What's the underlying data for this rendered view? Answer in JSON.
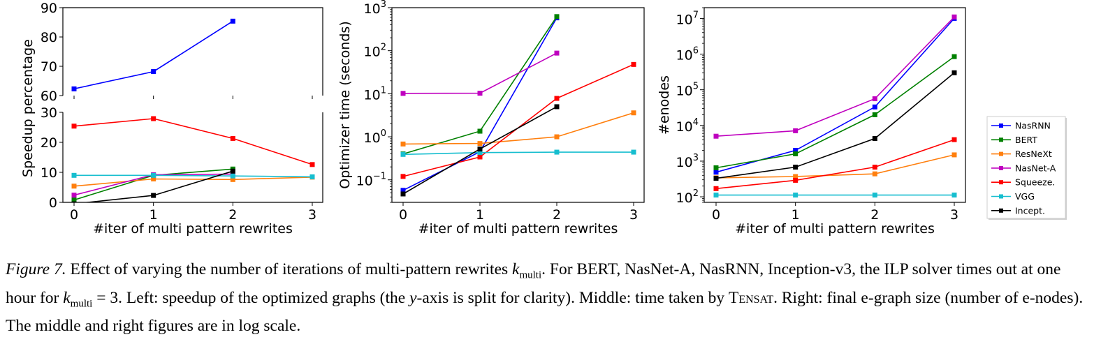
{
  "figure": {
    "caption": {
      "label": "Figure 7.",
      "segments": [
        {
          "t": " Effect of varying the number of iterations of multi-pattern rewrites "
        },
        {
          "t": "k",
          "s": "var"
        },
        {
          "t": "multi",
          "s": "sub"
        },
        {
          "t": ". For BERT, NasNet-A, NasRNN, Inception-v3, the ILP solver times out at one hour for "
        },
        {
          "t": "k",
          "s": "var"
        },
        {
          "t": "multi",
          "s": "sub"
        },
        {
          "t": " = 3. Left: speedup of the optimized graphs (the "
        },
        {
          "t": "y",
          "s": "var"
        },
        {
          "t": "-axis is split for clarity). Middle: time taken by "
        },
        {
          "t": "TENSAT",
          "s": "smcaps"
        },
        {
          "t": ". Right: final e-graph size (number of e-nodes). The middle and right figures are in log scale."
        }
      ]
    }
  },
  "colors": {
    "NasRNN": "#0000ff",
    "BERT": "#008000",
    "ResNeXt": "#ff7f0e",
    "NasNet-A": "#bf00bf",
    "Squeeze.": "#ff0000",
    "VGG": "#17becf",
    "Incept.": "#000000"
  },
  "legend": {
    "placement": "right",
    "entries": [
      "NasRNN",
      "BERT",
      "ResNeXt",
      "NasNet-A",
      "Squeeze.",
      "VGG",
      "Incept."
    ]
  },
  "chart_data": [
    {
      "id": "speedup",
      "type": "line",
      "split_y_axis": true,
      "xlabel": "#iter of multi pattern rewrites",
      "ylabel": "Speedup percentage",
      "x_ticks": [
        "0",
        "1",
        "2",
        "3"
      ],
      "top_panel": {
        "ylim": [
          60,
          90
        ],
        "y_ticks": [
          "60",
          "70",
          "80",
          "90"
        ]
      },
      "bottom_panel": {
        "ylim": [
          0,
          30
        ],
        "y_ticks": [
          "0",
          "10",
          "20",
          "30"
        ]
      },
      "series": [
        {
          "name": "NasRNN",
          "x": [
            0,
            1,
            2
          ],
          "y": [
            62.3,
            68.2,
            85.4
          ]
        },
        {
          "name": "BERT",
          "x": [
            0,
            1,
            2
          ],
          "y": [
            0.8,
            9.0,
            11.1
          ]
        },
        {
          "name": "ResNeXt",
          "x": [
            0,
            1,
            2,
            3
          ],
          "y": [
            5.4,
            7.8,
            7.6,
            8.4
          ]
        },
        {
          "name": "NasNet-A",
          "x": [
            0,
            1,
            2
          ],
          "y": [
            2.4,
            9.2,
            9.4
          ]
        },
        {
          "name": "Squeeze.",
          "x": [
            0,
            1,
            2,
            3
          ],
          "y": [
            25.4,
            27.9,
            21.3,
            12.6
          ]
        },
        {
          "name": "VGG",
          "x": [
            0,
            1,
            2,
            3
          ],
          "y": [
            9.0,
            9.0,
            8.8,
            8.5
          ]
        },
        {
          "name": "Incept.",
          "x": [
            0,
            1,
            2
          ],
          "y": [
            -0.5,
            2.3,
            10.4
          ]
        }
      ]
    },
    {
      "id": "time",
      "type": "line",
      "y_scale": "log",
      "xlabel": "#iter of multi pattern rewrites",
      "ylabel": "Optimizer time (seconds)",
      "x_ticks": [
        "0",
        "1",
        "2",
        "3"
      ],
      "ylim": [
        0.03,
        1000
      ],
      "y_ticks": [
        {
          "base": "10",
          "exp": "−1",
          "value": 0.1
        },
        {
          "base": "10",
          "exp": "0",
          "value": 1
        },
        {
          "base": "10",
          "exp": "1",
          "value": 10
        },
        {
          "base": "10",
          "exp": "2",
          "value": 100
        },
        {
          "base": "10",
          "exp": "3",
          "value": 1000
        }
      ],
      "series": [
        {
          "name": "NasRNN",
          "x": [
            0,
            1,
            2
          ],
          "y": [
            0.057,
            0.45,
            580
          ]
        },
        {
          "name": "BERT",
          "x": [
            0,
            1,
            2
          ],
          "y": [
            0.4,
            1.35,
            620
          ]
        },
        {
          "name": "ResNeXt",
          "x": [
            0,
            1,
            2,
            3
          ],
          "y": [
            0.68,
            0.7,
            1.0,
            3.6
          ]
        },
        {
          "name": "NasNet-A",
          "x": [
            0,
            1,
            2
          ],
          "y": [
            10.2,
            10.3,
            88
          ]
        },
        {
          "name": "Squeeze.",
          "x": [
            0,
            1,
            2,
            3
          ],
          "y": [
            0.12,
            0.34,
            7.8,
            48
          ]
        },
        {
          "name": "VGG",
          "x": [
            0,
            1,
            2,
            3
          ],
          "y": [
            0.39,
            0.43,
            0.44,
            0.44
          ]
        },
        {
          "name": "Incept.",
          "x": [
            0,
            1,
            2
          ],
          "y": [
            0.047,
            0.52,
            5.0
          ]
        }
      ]
    },
    {
      "id": "enodes",
      "type": "line",
      "y_scale": "log",
      "xlabel": "#iter of multi pattern rewrites",
      "ylabel": "#enodes",
      "x_ticks": [
        "0",
        "1",
        "2",
        "3"
      ],
      "ylim": [
        70,
        20000000
      ],
      "y_ticks": [
        {
          "base": "10",
          "exp": "2",
          "value": 100
        },
        {
          "base": "10",
          "exp": "3",
          "value": 1000
        },
        {
          "base": "10",
          "exp": "4",
          "value": 10000
        },
        {
          "base": "10",
          "exp": "5",
          "value": 100000
        },
        {
          "base": "10",
          "exp": "6",
          "value": 1000000
        },
        {
          "base": "10",
          "exp": "7",
          "value": 10000000
        }
      ],
      "series": [
        {
          "name": "NasRNN",
          "x": [
            0,
            1,
            2,
            3
          ],
          "y": [
            490,
            2000,
            33000,
            10000000
          ]
        },
        {
          "name": "BERT",
          "x": [
            0,
            1,
            2,
            3
          ],
          "y": [
            650,
            1600,
            20000,
            850000
          ]
        },
        {
          "name": "ResNeXt",
          "x": [
            0,
            1,
            2,
            3
          ],
          "y": [
            340,
            370,
            440,
            1500
          ]
        },
        {
          "name": "NasNet-A",
          "x": [
            0,
            1,
            2,
            3
          ],
          "y": [
            5000,
            7100,
            56000,
            11000000
          ]
        },
        {
          "name": "Squeeze.",
          "x": [
            0,
            1,
            2,
            3
          ],
          "y": [
            170,
            290,
            680,
            4000
          ]
        },
        {
          "name": "VGG",
          "x": [
            0,
            1,
            2,
            3
          ],
          "y": [
            112,
            112,
            112,
            112
          ]
        },
        {
          "name": "Incept.",
          "x": [
            0,
            1,
            2,
            3
          ],
          "y": [
            330,
            680,
            4300,
            300000
          ]
        }
      ]
    }
  ]
}
